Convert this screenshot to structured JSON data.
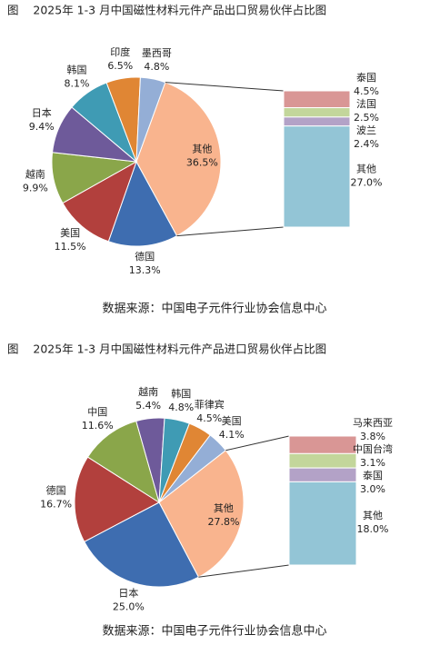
{
  "chart_data": [
    {
      "type": "pie-of-bar",
      "title": "图    2025年 1-3 月中国磁性材料元件产品出口贸易伙伴占比图",
      "categories": [
        "其他",
        "德国",
        "美国",
        "越南",
        "日本",
        "韩国",
        "印度",
        "墨西哥"
      ],
      "values": [
        36.5,
        13.3,
        11.5,
        9.9,
        9.4,
        8.1,
        6.5,
        4.8
      ],
      "value_labels": [
        "36.5%",
        "13.3%",
        "11.5%",
        "9.9%",
        "9.4%",
        "8.1%",
        "6.5%",
        "4.8%"
      ],
      "colors": [
        "#F9B48E",
        "#3E6DB0",
        "#B2403D",
        "#8AA64A",
        "#6E5A9A",
        "#3F9BB4",
        "#E08634",
        "#94AED6"
      ],
      "breakdown": {
        "categories": [
          "泰国",
          "法国",
          "波兰",
          "其他"
        ],
        "values": [
          4.5,
          2.5,
          2.4,
          27.0
        ],
        "value_labels": [
          "4.5%",
          "2.5%",
          "2.4%",
          "27.0%"
        ],
        "colors": [
          "#D99695",
          "#C3D69B",
          "#B3A2C7",
          "#93C5D6"
        ]
      },
      "source": "数据来源：中国电子元件行业协会信息中心"
    },
    {
      "type": "pie-of-bar",
      "title": "图    2025年 1-3 月中国磁性材料元件产品进口贸易伙伴占比图",
      "categories": [
        "其他",
        "日本",
        "德国",
        "中国",
        "越南",
        "韩国",
        "菲律宾",
        "美国"
      ],
      "values": [
        27.8,
        25.0,
        16.7,
        11.6,
        5.4,
        4.8,
        4.5,
        4.1
      ],
      "value_labels": [
        "27.8%",
        "25.0%",
        "16.7%",
        "11.6%",
        "5.4%",
        "4.8%",
        "4.5%",
        "4.1%"
      ],
      "colors": [
        "#F9B48E",
        "#3E6DB0",
        "#B2403D",
        "#8AA64A",
        "#6E5A9A",
        "#3F9BB4",
        "#E08634",
        "#94AED6"
      ],
      "breakdown": {
        "categories": [
          "马来西亚",
          "中国台湾",
          "泰国",
          "其他"
        ],
        "values": [
          3.8,
          3.1,
          3.0,
          18.0
        ],
        "value_labels": [
          "3.8%",
          "3.1%",
          "3.0%",
          "18.0%"
        ],
        "colors": [
          "#D99695",
          "#C3D69B",
          "#B3A2C7",
          "#93C5D6"
        ]
      },
      "source": "数据来源：中国电子元件行业协会信息中心"
    }
  ]
}
